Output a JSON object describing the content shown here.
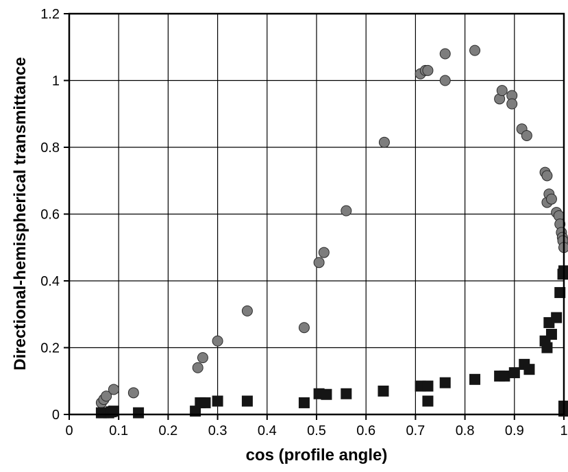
{
  "chart_data": {
    "type": "scatter",
    "xlabel": "cos (profile angle)",
    "ylabel": "Directional-hemispherical transmittance",
    "xlim": [
      0,
      1
    ],
    "ylim": [
      0,
      1.2
    ],
    "x_ticks": [
      "0",
      "0.1",
      "0.2",
      "0.3",
      "0.4",
      "0.5",
      "0.6",
      "0.7",
      "0.8",
      "0.9",
      "1"
    ],
    "y_ticks": [
      "0",
      "0.2",
      "0.4",
      "0.6",
      "0.8",
      "1",
      "1.2"
    ],
    "grid": true,
    "legend": "none",
    "series": [
      {
        "marker": "circle",
        "color": "#7d7d7d",
        "points": [
          [
            0.065,
            0.035
          ],
          [
            0.07,
            0.045
          ],
          [
            0.075,
            0.055
          ],
          [
            0.09,
            0.075
          ],
          [
            0.13,
            0.065
          ],
          [
            0.26,
            0.14
          ],
          [
            0.27,
            0.17
          ],
          [
            0.3,
            0.22
          ],
          [
            0.36,
            0.31
          ],
          [
            0.475,
            0.26
          ],
          [
            0.505,
            0.455
          ],
          [
            0.515,
            0.485
          ],
          [
            0.56,
            0.61
          ],
          [
            0.637,
            0.815
          ],
          [
            0.71,
            1.02
          ],
          [
            0.72,
            1.03
          ],
          [
            0.725,
            1.03
          ],
          [
            0.76,
            1.0
          ],
          [
            0.76,
            1.08
          ],
          [
            0.82,
            1.09
          ],
          [
            0.87,
            0.945
          ],
          [
            0.875,
            0.97
          ],
          [
            0.895,
            0.955
          ],
          [
            0.895,
            0.93
          ],
          [
            0.915,
            0.855
          ],
          [
            0.925,
            0.835
          ],
          [
            0.962,
            0.725
          ],
          [
            0.966,
            0.715
          ],
          [
            0.966,
            0.635
          ],
          [
            0.97,
            0.66
          ],
          [
            0.975,
            0.645
          ],
          [
            0.985,
            0.605
          ],
          [
            0.99,
            0.595
          ],
          [
            0.992,
            0.57
          ],
          [
            0.995,
            0.545
          ],
          [
            0.997,
            0.53
          ],
          [
            0.998,
            0.52
          ],
          [
            1.0,
            0.5
          ]
        ]
      },
      {
        "marker": "square",
        "color": "#151515",
        "points": [
          [
            0.065,
            0.005
          ],
          [
            0.07,
            0.005
          ],
          [
            0.08,
            0.005
          ],
          [
            0.085,
            0.008
          ],
          [
            0.09,
            0.01
          ],
          [
            0.14,
            0.005
          ],
          [
            0.255,
            0.01
          ],
          [
            0.265,
            0.035
          ],
          [
            0.275,
            0.035
          ],
          [
            0.3,
            0.04
          ],
          [
            0.36,
            0.04
          ],
          [
            0.475,
            0.035
          ],
          [
            0.505,
            0.062
          ],
          [
            0.52,
            0.06
          ],
          [
            0.56,
            0.062
          ],
          [
            0.635,
            0.07
          ],
          [
            0.71,
            0.085
          ],
          [
            0.725,
            0.085
          ],
          [
            0.725,
            0.04
          ],
          [
            0.76,
            0.095
          ],
          [
            0.82,
            0.105
          ],
          [
            0.87,
            0.115
          ],
          [
            0.88,
            0.115
          ],
          [
            0.9,
            0.125
          ],
          [
            0.92,
            0.15
          ],
          [
            0.93,
            0.135
          ],
          [
            0.962,
            0.22
          ],
          [
            0.966,
            0.2
          ],
          [
            0.97,
            0.275
          ],
          [
            0.975,
            0.24
          ],
          [
            0.985,
            0.29
          ],
          [
            0.992,
            0.365
          ],
          [
            0.998,
            0.42
          ],
          [
            1.0,
            0.43
          ],
          [
            1.0,
            0.01
          ],
          [
            1.0,
            0.025
          ]
        ]
      }
    ]
  }
}
